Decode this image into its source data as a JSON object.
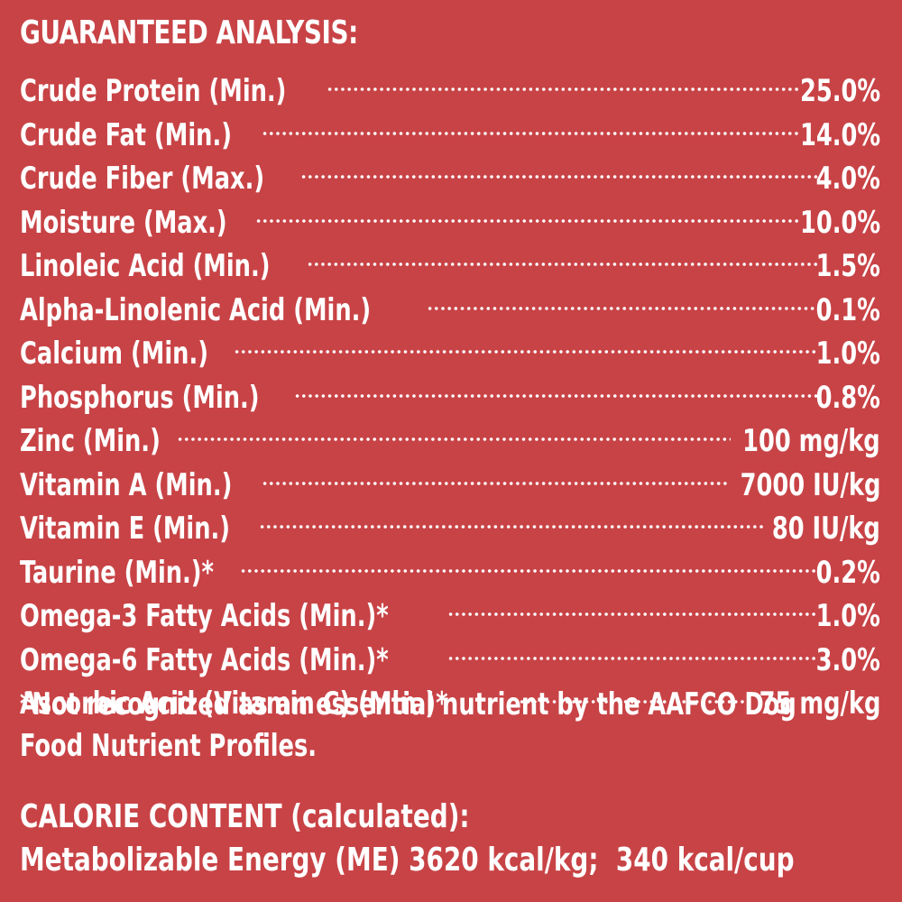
{
  "guaranteed_analysis": {
    "heading": "GUARANTEED ANALYSIS:",
    "rows": [
      {
        "label": "Crude Protein (Min.)",
        "value": "25.0%"
      },
      {
        "label": "Crude Fat (Min.)",
        "value": "14.0%"
      },
      {
        "label": "Crude Fiber (Max.)",
        "value": "4.0%"
      },
      {
        "label": "Moisture (Max.)",
        "value": "10.0%"
      },
      {
        "label": "Linoleic Acid (Min.)",
        "value": "1.5%"
      },
      {
        "label": "Alpha-Linolenic Acid (Min.)",
        "value": "0.1%"
      },
      {
        "label": "Calcium (Min.)",
        "value": "1.0%"
      },
      {
        "label": "Phosphorus (Min.)",
        "value": "0.8%"
      },
      {
        "label": "Zinc (Min.)",
        "value": "100 mg/kg"
      },
      {
        "label": "Vitamin A (Min.)",
        "value": "7000 IU/kg"
      },
      {
        "label": "Vitamin E (Min.)",
        "value": "80 IU/kg"
      },
      {
        "label": "Taurine (Min.)*",
        "value": "0.2%"
      },
      {
        "label": "Omega-3 Fatty Acids (Min.)*",
        "value": "1.0%"
      },
      {
        "label": "Omega-6 Fatty Acids (Min.)*",
        "value": "3.0%"
      },
      {
        "label": "Ascorbic Acid (Vitamin C) (Min.)*",
        "value": "75 mg/kg"
      }
    ],
    "footnote": "*Not recognized as an essential nutrient by the AAFCO Dog Food Nutrient Profiles."
  },
  "calorie_content": {
    "heading": "CALORIE CONTENT (calculated):",
    "value": "Metabolizable Energy (ME) 3620 kcal/kg;  340 kcal/cup"
  },
  "colors": {
    "background": "#c84346",
    "text": "#ffffff"
  }
}
